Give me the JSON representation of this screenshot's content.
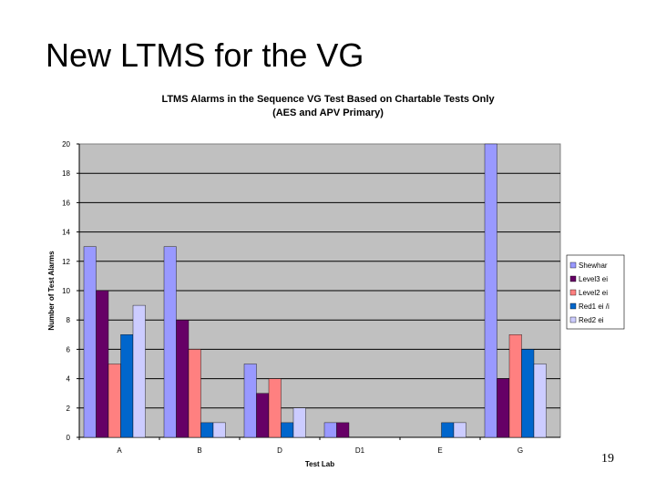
{
  "slide": {
    "title": "New LTMS for the VG",
    "page_number": "19"
  },
  "chart_data": {
    "type": "bar",
    "title_line1": "LTMS Alarms in the Sequence VG Test Based on Chartable Tests Only",
    "title_line2": "(AES and APV Primary)",
    "xlabel": "Test Lab",
    "ylabel": "Number of Test Alarms",
    "ylim": [
      0,
      20
    ],
    "yticks": [
      0,
      2,
      4,
      6,
      8,
      10,
      12,
      14,
      16,
      18,
      20
    ],
    "grid": "major y gridlines",
    "legend_position": "right",
    "categories": [
      "A",
      "B",
      "D",
      "D1",
      "E",
      "G"
    ],
    "series": [
      {
        "name": "Shewhar",
        "color": "#9999ff",
        "values": [
          13,
          13,
          5,
          1,
          0,
          20
        ]
      },
      {
        "name": "Level3 ei",
        "color": "#660066",
        "values": [
          10,
          8,
          3,
          1,
          0,
          4
        ]
      },
      {
        "name": "Level2 ei",
        "color": "#ff8080",
        "values": [
          5,
          6,
          4,
          0,
          0,
          7
        ]
      },
      {
        "name": "Red1 ei /i",
        "color": "#0066cc",
        "values": [
          7,
          1,
          1,
          0,
          1,
          6
        ]
      },
      {
        "name": "Red2 ei",
        "color": "#ccccff",
        "values": [
          9,
          1,
          2,
          0,
          1,
          5
        ]
      }
    ],
    "plot_background": "#c0c0c0"
  }
}
